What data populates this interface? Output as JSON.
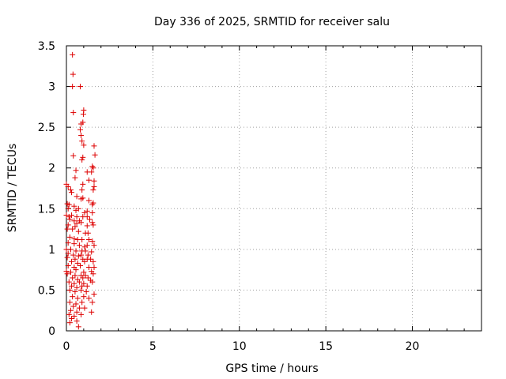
{
  "chart_data": {
    "type": "scatter",
    "title": "Day 336 of 2025, SRMTID for receiver salu",
    "xlabel": "GPS time / hours",
    "ylabel": "SRMTID / TECUs",
    "xlim": [
      0,
      24
    ],
    "ylim": [
      0,
      3.5
    ],
    "xticks": [
      0,
      5,
      10,
      15,
      20
    ],
    "xtick_labels": [
      "0",
      "5",
      "10",
      "15",
      "20"
    ],
    "yticks": [
      0,
      0.5,
      1,
      1.5,
      2,
      2.5,
      3,
      3.5
    ],
    "ytick_labels": [
      "0",
      "0.5",
      "1",
      "1.5",
      "2",
      "2.5",
      "3",
      "3.5"
    ],
    "grid": true,
    "marker": "+",
    "color": "#dd0000",
    "series": [
      {
        "name": "salu",
        "points": [
          [
            0.35,
            3.39
          ],
          [
            0.38,
            3.15
          ],
          [
            0.35,
            3.0
          ],
          [
            0.8,
            3.0
          ],
          [
            0.4,
            2.68
          ],
          [
            1.0,
            2.71
          ],
          [
            0.98,
            2.66
          ],
          [
            0.95,
            2.56
          ],
          [
            0.85,
            2.54
          ],
          [
            0.8,
            2.47
          ],
          [
            0.85,
            2.4
          ],
          [
            0.9,
            2.33
          ],
          [
            1.0,
            2.28
          ],
          [
            1.6,
            2.27
          ],
          [
            1.65,
            2.16
          ],
          [
            0.4,
            2.15
          ],
          [
            0.95,
            2.13
          ],
          [
            0.9,
            2.1
          ],
          [
            1.5,
            2.02
          ],
          [
            1.55,
            2.0
          ],
          [
            0.55,
            1.97
          ],
          [
            1.2,
            1.95
          ],
          [
            1.45,
            1.95
          ],
          [
            0.5,
            1.88
          ],
          [
            1.3,
            1.85
          ],
          [
            1.6,
            1.84
          ],
          [
            0.0,
            1.8
          ],
          [
            0.95,
            1.8
          ],
          [
            0.1,
            1.77
          ],
          [
            1.6,
            1.77
          ],
          [
            0.25,
            1.73
          ],
          [
            0.9,
            1.73
          ],
          [
            1.55,
            1.73
          ],
          [
            0.3,
            1.7
          ],
          [
            0.6,
            1.65
          ],
          [
            0.85,
            1.62
          ],
          [
            0.95,
            1.63
          ],
          [
            1.3,
            1.6
          ],
          [
            0.05,
            1.56
          ],
          [
            0.15,
            1.55
          ],
          [
            0.45,
            1.53
          ],
          [
            1.5,
            1.55
          ],
          [
            1.55,
            1.57
          ],
          [
            0.1,
            1.5
          ],
          [
            0.55,
            1.48
          ],
          [
            0.7,
            1.5
          ],
          [
            1.2,
            1.47
          ],
          [
            1.05,
            1.45
          ],
          [
            1.5,
            1.45
          ],
          [
            0.0,
            1.42
          ],
          [
            0.15,
            1.4
          ],
          [
            0.3,
            1.42
          ],
          [
            0.6,
            1.4
          ],
          [
            0.95,
            1.4
          ],
          [
            1.2,
            1.4
          ],
          [
            0.2,
            1.37
          ],
          [
            0.45,
            1.35
          ],
          [
            0.75,
            1.35
          ],
          [
            0.85,
            1.33
          ],
          [
            1.35,
            1.37
          ],
          [
            0.6,
            1.32
          ],
          [
            1.5,
            1.33
          ],
          [
            0.1,
            1.3
          ],
          [
            0.5,
            1.28
          ],
          [
            1.2,
            1.29
          ],
          [
            1.55,
            1.3
          ],
          [
            0.05,
            1.25
          ],
          [
            0.35,
            1.25
          ],
          [
            0.7,
            1.22
          ],
          [
            1.1,
            1.2
          ],
          [
            1.25,
            1.2
          ],
          [
            0.2,
            1.15
          ],
          [
            0.45,
            1.13
          ],
          [
            0.65,
            1.12
          ],
          [
            0.9,
            1.12
          ],
          [
            1.3,
            1.12
          ],
          [
            1.5,
            1.1
          ],
          [
            0.1,
            1.08
          ],
          [
            0.45,
            1.07
          ],
          [
            0.75,
            1.05
          ],
          [
            1.05,
            1.03
          ],
          [
            1.2,
            1.05
          ],
          [
            1.6,
            1.05
          ],
          [
            0.0,
            1.0
          ],
          [
            0.25,
            1.0
          ],
          [
            0.55,
            0.98
          ],
          [
            0.9,
            0.98
          ],
          [
            1.1,
            0.98
          ],
          [
            1.45,
            0.97
          ],
          [
            0.1,
            0.95
          ],
          [
            0.4,
            0.93
          ],
          [
            0.7,
            0.92
          ],
          [
            0.85,
            0.93
          ],
          [
            1.25,
            0.93
          ],
          [
            0.05,
            0.9
          ],
          [
            0.5,
            0.88
          ],
          [
            0.95,
            0.88
          ],
          [
            1.2,
            0.88
          ],
          [
            1.4,
            0.88
          ],
          [
            0.3,
            0.85
          ],
          [
            0.65,
            0.83
          ],
          [
            1.05,
            0.85
          ],
          [
            1.55,
            0.85
          ],
          [
            0.1,
            0.8
          ],
          [
            0.45,
            0.78
          ],
          [
            0.8,
            0.8
          ],
          [
            1.3,
            0.78
          ],
          [
            1.6,
            0.78
          ],
          [
            0.0,
            0.73
          ],
          [
            0.25,
            0.72
          ],
          [
            0.55,
            0.75
          ],
          [
            1.0,
            0.72
          ],
          [
            1.45,
            0.73
          ],
          [
            0.05,
            0.7
          ],
          [
            0.5,
            0.68
          ],
          [
            0.85,
            0.68
          ],
          [
            1.1,
            0.68
          ],
          [
            1.55,
            0.7
          ],
          [
            0.35,
            0.65
          ],
          [
            0.65,
            0.63
          ],
          [
            0.95,
            0.65
          ],
          [
            1.25,
            0.65
          ],
          [
            1.4,
            0.62
          ],
          [
            0.15,
            0.6
          ],
          [
            0.45,
            0.58
          ],
          [
            0.75,
            0.6
          ],
          [
            1.0,
            0.58
          ],
          [
            1.5,
            0.6
          ],
          [
            0.3,
            0.55
          ],
          [
            0.6,
            0.53
          ],
          [
            0.9,
            0.55
          ],
          [
            1.2,
            0.55
          ],
          [
            0.2,
            0.5
          ],
          [
            0.5,
            0.48
          ],
          [
            0.85,
            0.5
          ],
          [
            1.15,
            0.48
          ],
          [
            1.6,
            0.45
          ],
          [
            0.35,
            0.42
          ],
          [
            0.65,
            0.4
          ],
          [
            1.0,
            0.42
          ],
          [
            1.3,
            0.4
          ],
          [
            0.2,
            0.35
          ],
          [
            0.55,
            0.33
          ],
          [
            0.9,
            0.35
          ],
          [
            1.5,
            0.35
          ],
          [
            0.4,
            0.3
          ],
          [
            0.75,
            0.28
          ],
          [
            1.05,
            0.28
          ],
          [
            0.25,
            0.25
          ],
          [
            0.6,
            0.23
          ],
          [
            1.45,
            0.23
          ],
          [
            0.15,
            0.2
          ],
          [
            0.45,
            0.18
          ],
          [
            0.85,
            0.2
          ],
          [
            0.3,
            0.15
          ],
          [
            0.6,
            0.12
          ],
          [
            0.2,
            0.1
          ],
          [
            0.7,
            0.05
          ]
        ]
      }
    ]
  }
}
